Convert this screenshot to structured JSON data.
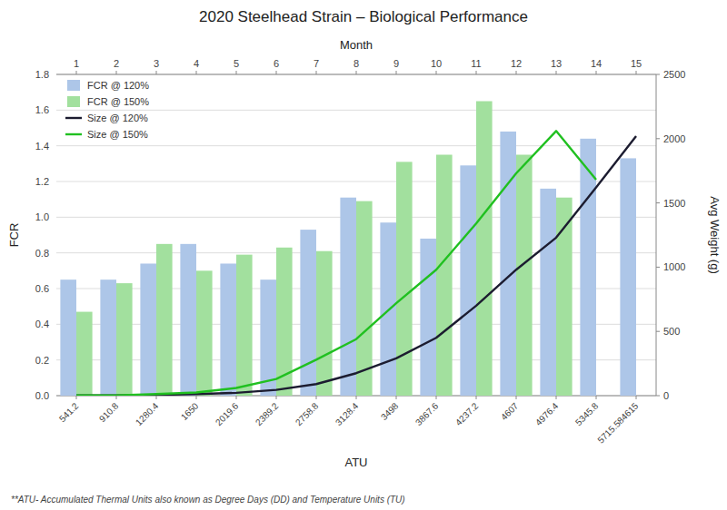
{
  "chart_data": {
    "type": "bar",
    "title": "2020 Steelhead Strain – Biological Performance",
    "x_label": "ATU",
    "x2_label": "Month",
    "y_label": "FCR",
    "y2_label": "Avg Weight (g)",
    "footnote": "**ATU- Accumulated Thermal Units also known as Degree Days (DD) and Temperature Units (TU)",
    "categories": [
      "541.2",
      "910.8",
      "1280.4",
      "1650",
      "2019.6",
      "2389.2",
      "2758.8",
      "3128.4",
      "3498",
      "3867.6",
      "4237.2",
      "4607",
      "4976.4",
      "5345.8",
      "5715.584615"
    ],
    "x2_categories": [
      "1",
      "2",
      "3",
      "4",
      "5",
      "6",
      "7",
      "8",
      "9",
      "10",
      "11",
      "12",
      "13",
      "14",
      "15"
    ],
    "series": [
      {
        "name": "FCR @ 120%",
        "type": "bar",
        "color": "#adc6e8",
        "values": [
          0.65,
          0.65,
          0.74,
          0.85,
          0.74,
          0.65,
          0.93,
          1.11,
          0.97,
          0.88,
          1.29,
          1.48,
          1.16,
          1.44,
          1.33
        ]
      },
      {
        "name": "FCR @ 150%",
        "type": "bar",
        "color": "#a2e09e",
        "values": [
          0.47,
          0.63,
          0.85,
          0.7,
          0.79,
          0.83,
          0.81,
          1.09,
          1.31,
          1.35,
          1.65,
          1.35,
          1.11,
          null,
          null
        ]
      },
      {
        "name": "Size @ 120%",
        "type": "line",
        "axis": "y2",
        "color": "#1c1c30",
        "values": [
          2,
          2,
          6,
          12,
          22,
          45,
          90,
          175,
          290,
          450,
          700,
          980,
          1230,
          1620,
          2020
        ]
      },
      {
        "name": "Size @ 150%",
        "type": "line",
        "axis": "y2",
        "color": "#20c020",
        "values": [
          2,
          2,
          12,
          25,
          60,
          130,
          280,
          440,
          720,
          980,
          1340,
          1730,
          2060,
          1680,
          null
        ]
      }
    ],
    "ylim": [
      0,
      1.8
    ],
    "yticks": [
      {
        "value": 0,
        "label": "0.0"
      },
      0.2,
      0.4,
      0.6,
      0.8,
      {
        "value": 1,
        "label": "1.0"
      },
      1.2,
      1.4,
      1.6,
      1.8
    ],
    "y2lim": [
      0,
      2500
    ],
    "y2ticks": [
      0,
      500,
      1000,
      1500,
      2000,
      2500
    ],
    "grid": true,
    "legend": "upper left"
  }
}
